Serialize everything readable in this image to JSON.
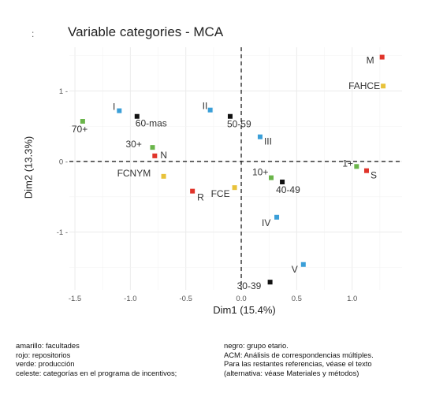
{
  "chart_data": {
    "type": "scatter",
    "title": "Variable categories - MCA",
    "title_marker": ":",
    "xlabel": "Dim1 (15.4%)",
    "ylabel": "Dim2 (13.3%)",
    "xlim": [
      -1.55,
      1.45
    ],
    "ylim": [
      -1.82,
      1.62
    ],
    "x_ticks": [
      -1.5,
      -1.0,
      -0.5,
      0.0,
      0.5,
      1.0
    ],
    "x_tick_labels": [
      "-1.5",
      "-1.0",
      "-0.5",
      "0.0",
      "0.5",
      "1.0"
    ],
    "y_ticks": [
      1,
      0,
      -1
    ],
    "y_tick_labels": [
      "1 -",
      "0 -",
      "-1 -"
    ],
    "grid": true,
    "reference_lines": {
      "x": 0,
      "y": 0,
      "style": "dashed"
    },
    "groups": [
      {
        "key": "amarillo",
        "color": "#e8c23a"
      },
      {
        "key": "rojo",
        "color": "#e0342a"
      },
      {
        "key": "verde",
        "color": "#6ab54a"
      },
      {
        "key": "celeste",
        "color": "#3b9fd8"
      },
      {
        "key": "negro",
        "color": "#111111"
      }
    ],
    "points": [
      {
        "label": "M",
        "x": 1.27,
        "y": 1.48,
        "group": "rojo"
      },
      {
        "label": "FAHCE",
        "x": 1.28,
        "y": 1.07,
        "group": "amarillo"
      },
      {
        "label": "I",
        "x": -1.1,
        "y": 0.72,
        "group": "celeste"
      },
      {
        "label": "70+",
        "x": -1.43,
        "y": 0.57,
        "group": "verde"
      },
      {
        "label": "60-mas",
        "x": -0.94,
        "y": 0.64,
        "group": "negro"
      },
      {
        "label": "II",
        "x": -0.28,
        "y": 0.73,
        "group": "celeste"
      },
      {
        "label": "50-59",
        "x": -0.1,
        "y": 0.64,
        "group": "negro"
      },
      {
        "label": "III",
        "x": 0.17,
        "y": 0.35,
        "group": "celeste"
      },
      {
        "label": "30+",
        "x": -0.8,
        "y": 0.2,
        "group": "verde"
      },
      {
        "label": "N",
        "x": -0.78,
        "y": 0.08,
        "group": "rojo"
      },
      {
        "label": "1+",
        "x": 1.04,
        "y": -0.07,
        "group": "verde"
      },
      {
        "label": "S",
        "x": 1.13,
        "y": -0.13,
        "group": "rojo"
      },
      {
        "label": "FCNYM",
        "x": -0.7,
        "y": -0.21,
        "group": "amarillo"
      },
      {
        "label": "10+",
        "x": 0.27,
        "y": -0.23,
        "group": "verde"
      },
      {
        "label": "40-49",
        "x": 0.37,
        "y": -0.29,
        "group": "negro"
      },
      {
        "label": "R",
        "x": -0.44,
        "y": -0.42,
        "group": "rojo"
      },
      {
        "label": "FCE",
        "x": -0.06,
        "y": -0.37,
        "group": "amarillo"
      },
      {
        "label": "IV",
        "x": 0.32,
        "y": -0.79,
        "group": "celeste"
      },
      {
        "label": "V",
        "x": 0.56,
        "y": -1.46,
        "group": "celeste"
      },
      {
        "label": "30-39",
        "x": 0.26,
        "y": -1.71,
        "group": "negro"
      }
    ]
  },
  "caption": {
    "left": [
      "amarillo: facultades",
      "rojo: repositorios",
      "verde: producción",
      "celeste: categorías en el programa de incentivos;"
    ],
    "right": [
      "negro: grupo etario.",
      "ACM: Análisis de correspondencias múltiples.",
      "Para las restantes referencias, véase el texto",
      "(alternativa: véase Materiales y métodos)"
    ]
  }
}
